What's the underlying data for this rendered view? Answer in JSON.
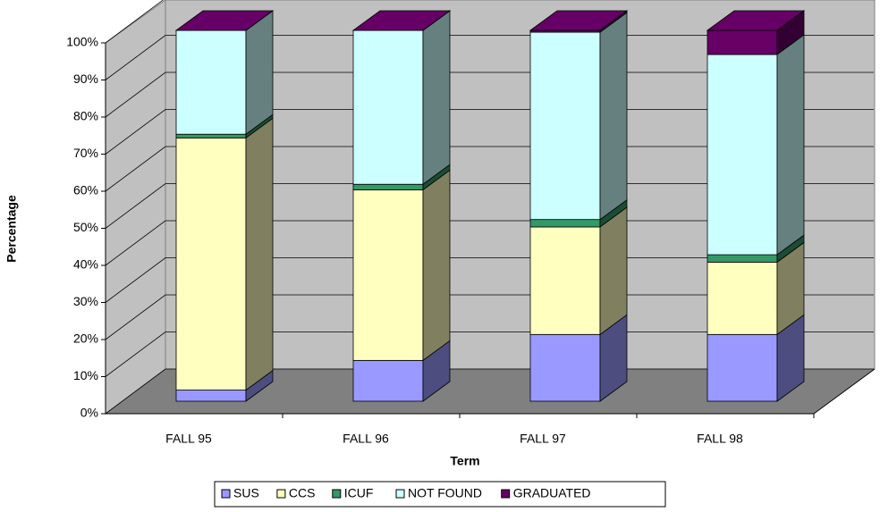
{
  "chart_data": {
    "type": "stacked-bar-3d",
    "x_label": "Term",
    "y_label": "Percentage",
    "categories": [
      "FALL 95",
      "FALL 96",
      "FALL 97",
      "FALL 98"
    ],
    "series": [
      {
        "name": "SUS",
        "color": "#9999ff",
        "values": [
          3,
          11,
          18,
          18
        ]
      },
      {
        "name": "CCS",
        "color": "#ffffc0",
        "values": [
          68,
          46,
          29,
          19.5
        ]
      },
      {
        "name": "ICUF",
        "color": "#339966",
        "values": [
          1,
          1.5,
          2,
          2
        ]
      },
      {
        "name": "NOT FOUND",
        "color": "#ccffff",
        "values": [
          28,
          41.5,
          50.5,
          54
        ]
      },
      {
        "name": "GRADUATED",
        "color": "#660066",
        "values": [
          0,
          0,
          0.5,
          6.5
        ]
      }
    ],
    "ylim": [
      0,
      100
    ],
    "yticks": [
      {
        "value": 0,
        "label": "0%"
      },
      {
        "value": 10,
        "label": "10%"
      },
      {
        "value": 20,
        "label": "20%"
      },
      {
        "value": 30,
        "label": "30%"
      },
      {
        "value": 40,
        "label": "40%"
      },
      {
        "value": 50,
        "label": "50%"
      },
      {
        "value": 60,
        "label": "60%"
      },
      {
        "value": 70,
        "label": "70%"
      },
      {
        "value": 80,
        "label": "80%"
      },
      {
        "value": 90,
        "label": "90%"
      },
      {
        "value": 100,
        "label": "100%"
      }
    ],
    "grid": true,
    "legend": "bottom"
  }
}
